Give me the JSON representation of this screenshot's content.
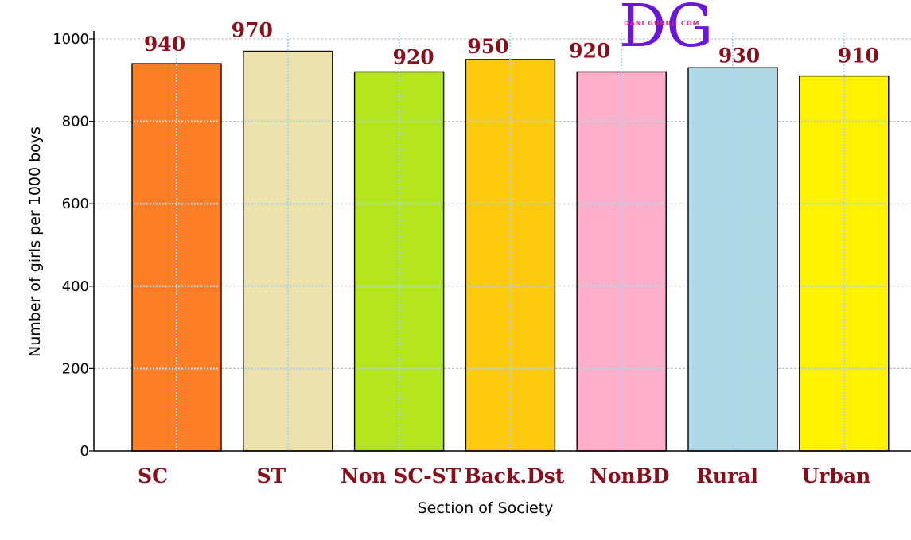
{
  "chart_data": {
    "type": "bar",
    "categories": [
      "SC",
      "ST",
      "Non SC-ST",
      "Back.Dst",
      "NonBD",
      "Rural",
      "Urban"
    ],
    "values": [
      940,
      970,
      920,
      950,
      920,
      930,
      910
    ],
    "value_labels": [
      "940",
      "970",
      "920",
      "950",
      "920",
      "930",
      "910"
    ],
    "colors": [
      "#ff7f27",
      "#eee2ac",
      "#b5e61d",
      "#ffc90e",
      "#ffaec9",
      "#add8e6",
      "#fff200"
    ],
    "xlabel": "Section of Society",
    "ylabel": "Number of girls per 1000 boys",
    "ylim": [
      0,
      1000
    ],
    "yticks": [
      "0",
      "200",
      "400",
      "600",
      "800",
      "1000"
    ],
    "grid": true
  },
  "watermark": {
    "letters": "DG",
    "site": "DANI GURUJI.COM",
    "colors": [
      "#6a16d8",
      "#e0267c"
    ]
  }
}
